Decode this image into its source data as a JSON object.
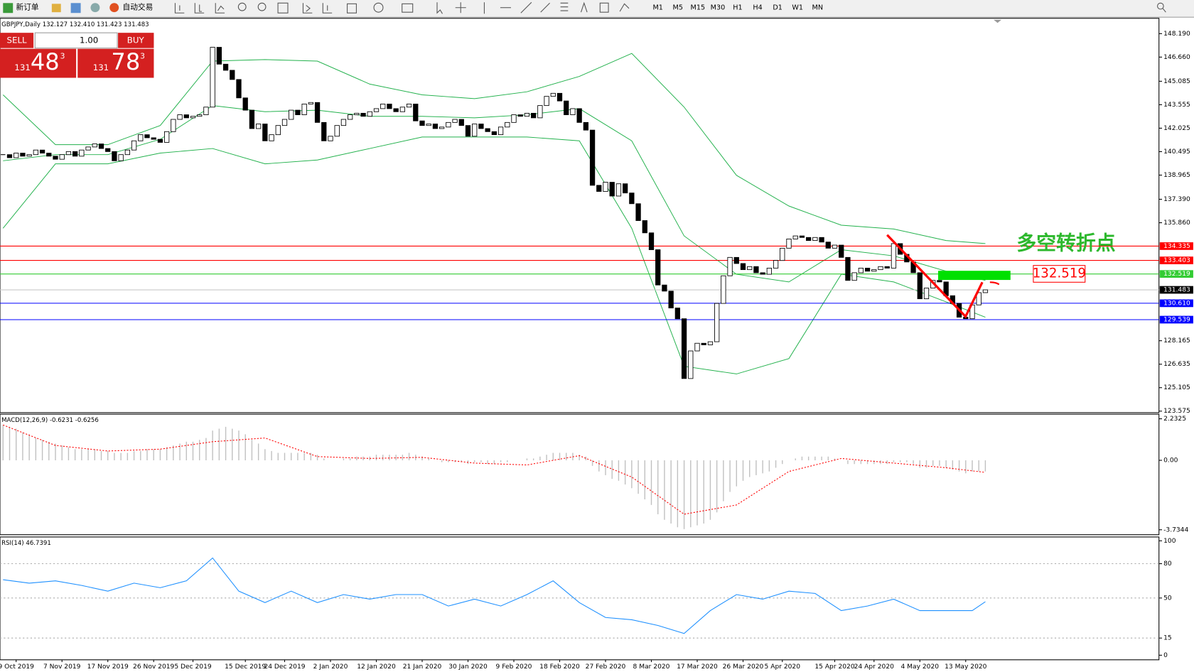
{
  "toolbar": {
    "new_order": "新订单",
    "auto_trading": "自动交易",
    "timeframes": [
      "M1",
      "M5",
      "M15",
      "M30",
      "H1",
      "H4",
      "D1",
      "W1",
      "MN"
    ]
  },
  "trade_panel": {
    "sell": "SELL",
    "lot": "1.00",
    "buy": "BUY",
    "sell_big": "131",
    "sell_main": "48",
    "sell_sup": "3",
    "buy_big": "131",
    "buy_main": "78",
    "buy_sup": "3"
  },
  "chart_data": [
    {
      "type": "candlestick",
      "title": "GBPJPY,Daily  132.127 132.410 131.423 131.483",
      "closes": [
        140.3,
        140.1,
        140.4,
        140.2,
        140.3,
        140.6,
        140.4,
        140.2,
        140.0,
        140.3,
        140.5,
        140.2,
        140.6,
        140.8,
        141.0,
        140.7,
        140.5,
        139.9,
        140.3,
        140.6,
        141.2,
        141.6,
        141.4,
        141.3,
        141.1,
        141.8,
        142.6,
        142.9,
        142.7,
        142.8,
        142.9,
        143.4,
        147.3,
        146.2,
        145.8,
        145.2,
        144.0,
        143.2,
        142.0,
        142.3,
        141.2,
        141.6,
        142.2,
        142.6,
        143.2,
        142.9,
        143.6,
        143.7,
        142.4,
        141.2,
        141.5,
        142.2,
        142.6,
        142.9,
        143.0,
        142.8,
        143.1,
        143.3,
        143.6,
        143.3,
        143.1,
        143.4,
        143.6,
        142.5,
        142.2,
        142.3,
        142.0,
        142.1,
        142.4,
        142.6,
        142.2,
        141.5,
        142.3,
        142.0,
        141.8,
        141.6,
        142.1,
        142.4,
        142.9,
        142.8,
        143.0,
        142.7,
        143.5,
        144.1,
        144.3,
        143.8,
        142.9,
        143.3,
        142.4,
        141.9,
        138.3,
        137.9,
        138.5,
        137.6,
        138.4,
        137.8,
        137.1,
        136.0,
        135.2,
        134.1,
        131.8,
        131.4,
        130.3,
        129.6,
        125.7,
        127.5,
        128.0,
        127.9,
        128.1,
        130.6,
        132.4,
        133.6,
        133.2,
        132.8,
        133.0,
        132.6,
        132.5,
        132.9,
        133.4,
        134.2,
        134.8,
        135.0,
        134.9,
        134.7,
        134.9,
        134.6,
        134.2,
        134.4,
        133.6,
        132.1,
        132.6,
        132.9,
        132.7,
        132.8,
        133.0,
        132.9,
        134.5,
        133.8,
        133.3,
        132.6,
        130.9,
        131.6,
        132.1,
        132.0,
        131.1,
        130.6,
        129.7,
        129.6,
        130.5,
        131.3,
        131.483
      ],
      "band_x": [
        0,
        8,
        16,
        24,
        32,
        40,
        48,
        56,
        64,
        72,
        80,
        88,
        96,
        104,
        112,
        120,
        128,
        136,
        144,
        150
      ],
      "bands": [
        {
          "color": "#22b14c",
          "values": [
            144.2,
            140.95,
            140.95,
            142.2,
            146.4,
            146.5,
            146.4,
            144.9,
            144.2,
            143.95,
            144.4,
            145.4,
            146.9,
            143.4,
            138.95,
            136.95,
            135.7,
            135.45,
            134.7,
            134.5
          ]
        },
        {
          "color": "#22b14c",
          "values": [
            139.9,
            140.3,
            140.3,
            141.3,
            143.5,
            143.1,
            143.2,
            142.8,
            142.8,
            142.7,
            142.9,
            143.3,
            141.2,
            135.0,
            132.5,
            132.0,
            134.1,
            133.7,
            132.7,
            132.1
          ]
        },
        {
          "color": "#22b14c",
          "values": [
            135.5,
            139.7,
            139.7,
            140.4,
            140.7,
            139.7,
            139.95,
            140.7,
            141.45,
            141.45,
            141.45,
            141.2,
            135.5,
            126.5,
            126.0,
            127.0,
            132.5,
            132.0,
            130.7,
            129.7
          ]
        }
      ],
      "levels": [
        {
          "value": 134.335,
          "color": "#ff0000",
          "tag_color": "#ff0000"
        },
        {
          "value": 133.403,
          "color": "#ff0000",
          "tag_color": "#ff0000"
        },
        {
          "value": 132.519,
          "color": "#33cc33",
          "tag_color": "#33cc33"
        },
        {
          "value": 131.483,
          "color": "#c8c8c8",
          "tag_color": "#000000"
        },
        {
          "value": 130.61,
          "label": "130.610",
          "color": "#0000ff",
          "tag_color": "#0000ff"
        },
        {
          "value": 129.539,
          "color": "#0000ff",
          "tag_color": "#0000ff"
        }
      ],
      "annotation": {
        "text": "多空转折点",
        "price": 132.519
      },
      "ylim": [
        123.475,
        149.19
      ],
      "yticks": [
        {
          "value": 148.19,
          "label": "148.190"
        },
        {
          "value": 146.66,
          "label": "146.660"
        },
        145.085,
        143.555,
        142.025,
        140.495,
        138.965,
        {
          "value": 137.39,
          "label": "137.390"
        },
        {
          "value": 135.86,
          "label": "135.860"
        },
        128.165,
        126.635,
        125.105,
        123.575
      ],
      "xticks": [
        {
          "value": 2,
          "label": "9 Oct 2019"
        },
        {
          "value": 9,
          "label": "7 Nov 2019"
        },
        {
          "value": 16,
          "label": "17 Nov 2019"
        },
        {
          "value": 23,
          "label": "26 Nov 2019"
        },
        {
          "value": 29,
          "label": "5 Dec 2019"
        },
        {
          "value": 37,
          "label": "15 Dec 2019"
        },
        {
          "value": 43,
          "label": "24 Dec 2019"
        },
        {
          "value": 50,
          "label": "2 Jan 2020"
        },
        {
          "value": 57,
          "label": "12 Jan 2020"
        },
        {
          "value": 64,
          "label": "21 Jan 2020"
        },
        {
          "value": 71,
          "label": "30 Jan 2020"
        },
        {
          "value": 78,
          "label": "9 Feb 2020"
        },
        {
          "value": 85,
          "label": "18 Feb 2020"
        },
        {
          "value": 92,
          "label": "27 Feb 2020"
        },
        {
          "value": 99,
          "label": "8 Mar 2020"
        },
        {
          "value": 106,
          "label": "17 Mar 2020"
        },
        {
          "value": 113,
          "label": "26 Mar 2020"
        },
        {
          "value": 119,
          "label": "5 Apr 2020"
        },
        {
          "value": 127,
          "label": "15 Apr 2020"
        },
        {
          "value": 133,
          "label": "24 Apr 2020"
        },
        {
          "value": 140,
          "label": "4 May 2020"
        },
        {
          "value": 147,
          "label": "13 May 2020"
        }
      ]
    },
    {
      "type": "macd",
      "title": "MACD(12,26,9) -0.6231 -0.6256",
      "color": "#c0c0c0",
      "signal_color": "#ff0000",
      "values": [
        1.9,
        1.8,
        1.7,
        1.5,
        1.4,
        1.2,
        1.1,
        1.0,
        0.9,
        0.8,
        0.7,
        0.6,
        0.6,
        0.6,
        0.6,
        0.5,
        0.5,
        0.4,
        0.4,
        0.4,
        0.5,
        0.5,
        0.6,
        0.6,
        0.6,
        0.7,
        0.8,
        0.9,
        1.0,
        1.0,
        1.1,
        1.2,
        1.6,
        1.7,
        1.8,
        1.7,
        1.6,
        1.4,
        1.1,
        0.9,
        0.6,
        0.5,
        0.4,
        0.4,
        0.4,
        0.4,
        0.4,
        0.4,
        0.3,
        0.1,
        0.0,
        0.0,
        0.1,
        0.1,
        0.2,
        0.2,
        0.2,
        0.3,
        0.3,
        0.3,
        0.3,
        0.3,
        0.4,
        0.3,
        0.2,
        0.1,
        0.0,
        -0.1,
        -0.1,
        -0.1,
        -0.1,
        -0.2,
        -0.1,
        -0.1,
        -0.2,
        -0.2,
        -0.1,
        -0.1,
        0.0,
        0.0,
        0.1,
        0.1,
        0.2,
        0.3,
        0.4,
        0.4,
        0.4,
        0.4,
        0.3,
        0.2,
        -0.3,
        -0.6,
        -0.8,
        -1.0,
        -1.1,
        -1.3,
        -1.5,
        -1.8,
        -2.1,
        -2.4,
        -2.9,
        -3.2,
        -3.4,
        -3.6,
        -3.7,
        -3.6,
        -3.5,
        -3.4,
        -3.2,
        -2.8,
        -2.2,
        -1.7,
        -1.4,
        -1.1,
        -0.9,
        -0.8,
        -0.7,
        -0.6,
        -0.4,
        -0.2,
        0.0,
        0.1,
        0.2,
        0.2,
        0.2,
        0.2,
        0.2,
        0.1,
        0.0,
        -0.2,
        -0.2,
        -0.2,
        -0.2,
        -0.2,
        -0.2,
        -0.2,
        -0.1,
        -0.1,
        -0.1,
        -0.2,
        -0.4,
        -0.4,
        -0.3,
        -0.3,
        -0.4,
        -0.5,
        -0.6,
        -0.7,
        -0.6,
        -0.6,
        -0.6
      ],
      "signal_x": [
        0,
        8,
        16,
        24,
        32,
        40,
        48,
        56,
        64,
        72,
        80,
        88,
        96,
        104,
        112,
        120,
        128,
        136,
        144,
        150
      ],
      "signal": [
        1.9,
        0.8,
        0.5,
        0.6,
        1.0,
        1.2,
        0.2,
        0.1,
        0.16,
        -0.15,
        -0.25,
        0.25,
        -0.9,
        -2.9,
        -2.4,
        -0.6,
        0.1,
        -0.15,
        -0.4,
        -0.65
      ],
      "ylim": [
        -4.0,
        2.48
      ],
      "yticks": [
        2.2325,
        {
          "value": 0,
          "label": "0.00"
        },
        -3.7344
      ]
    },
    {
      "type": "rsi",
      "title": "RSI(14) 46.7391",
      "color": "#1e90ff",
      "x": [
        0,
        4,
        8,
        12,
        16,
        20,
        24,
        28,
        32,
        36,
        40,
        44,
        48,
        52,
        56,
        60,
        64,
        68,
        72,
        76,
        80,
        84,
        88,
        92,
        96,
        100,
        104,
        108,
        112,
        116,
        120,
        124,
        128,
        132,
        136,
        140,
        144,
        148,
        150
      ],
      "values": [
        66,
        63,
        65,
        61,
        56,
        63,
        59,
        65,
        85,
        56,
        46,
        56,
        46,
        53,
        49,
        53,
        53,
        43,
        49,
        43,
        53,
        65,
        46,
        33,
        31,
        26,
        19,
        39,
        53,
        49,
        56,
        54,
        39,
        43,
        49,
        39,
        39,
        39,
        46.7391
      ],
      "levels": [
        80,
        50,
        15
      ],
      "ylim": [
        -4,
        103.33
      ],
      "yticks": [
        100,
        80,
        50,
        15,
        0
      ]
    }
  ]
}
